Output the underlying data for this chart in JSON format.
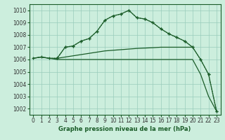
{
  "title": "Graphe pression niveau de la mer (hPa)",
  "bg_color": "#cceedd",
  "grid_color": "#99ccbb",
  "line_color": "#1a5c28",
  "xlim": [
    -0.5,
    23.5
  ],
  "ylim": [
    1001.5,
    1010.5
  ],
  "yticks": [
    1002,
    1003,
    1004,
    1005,
    1006,
    1007,
    1008,
    1009,
    1010
  ],
  "xticks": [
    0,
    1,
    2,
    3,
    4,
    5,
    6,
    7,
    8,
    9,
    10,
    11,
    12,
    13,
    14,
    15,
    16,
    17,
    18,
    19,
    20,
    21,
    22,
    23
  ],
  "line1_x": [
    0,
    1,
    2,
    3,
    4,
    5,
    6,
    7,
    8,
    9,
    10,
    11,
    12,
    13,
    14,
    15,
    16,
    17,
    18,
    19,
    20,
    21,
    22,
    23
  ],
  "line1_y": [
    1006.1,
    1006.2,
    1006.1,
    1006.0,
    1006.0,
    1006.0,
    1006.0,
    1006.0,
    1006.0,
    1006.0,
    1006.0,
    1006.0,
    1006.0,
    1006.0,
    1006.0,
    1006.0,
    1006.0,
    1006.0,
    1006.0,
    1006.0,
    1006.0,
    1004.8,
    1003.0,
    1001.8
  ],
  "line2_x": [
    0,
    1,
    2,
    3,
    4,
    5,
    6,
    7,
    8,
    9,
    10,
    11,
    12,
    13,
    14,
    15,
    16,
    17,
    18,
    19,
    20
  ],
  "line2_y": [
    1006.1,
    1006.2,
    1006.1,
    1006.1,
    1006.2,
    1006.3,
    1006.4,
    1006.5,
    1006.6,
    1006.7,
    1006.75,
    1006.8,
    1006.85,
    1006.9,
    1006.93,
    1006.96,
    1007.0,
    1007.0,
    1007.0,
    1007.0,
    1007.0
  ],
  "line3_x": [
    0,
    1,
    2,
    3,
    4,
    5,
    6,
    7,
    8,
    9,
    10,
    11,
    12,
    13,
    14,
    15,
    16,
    17,
    18,
    19,
    20,
    21,
    22,
    23
  ],
  "line3_y": [
    1006.1,
    1006.2,
    1006.1,
    1006.1,
    1007.0,
    1007.1,
    1007.5,
    1007.7,
    1008.3,
    1009.2,
    1009.55,
    1009.7,
    1010.0,
    1009.4,
    1009.3,
    1009.0,
    1008.5,
    1008.1,
    1007.8,
    1007.5,
    1007.0,
    1006.0,
    1004.8,
    1001.8
  ],
  "line4_x": [
    3,
    4,
    5,
    6,
    7,
    8,
    9,
    10,
    11,
    12,
    13,
    14,
    15,
    16,
    17,
    18,
    19,
    20,
    21,
    22,
    23
  ],
  "line4_y": [
    1006.1,
    1007.0,
    1007.1,
    1007.5,
    1007.7,
    1008.3,
    1009.2,
    1009.55,
    1009.7,
    1010.0,
    1009.4,
    1009.3,
    1009.0,
    1008.5,
    1008.1,
    1007.8,
    1007.5,
    1007.0,
    1006.0,
    1004.8,
    1001.8
  ],
  "tick_fontsize": 5.5,
  "xlabel_fontsize": 6.0
}
